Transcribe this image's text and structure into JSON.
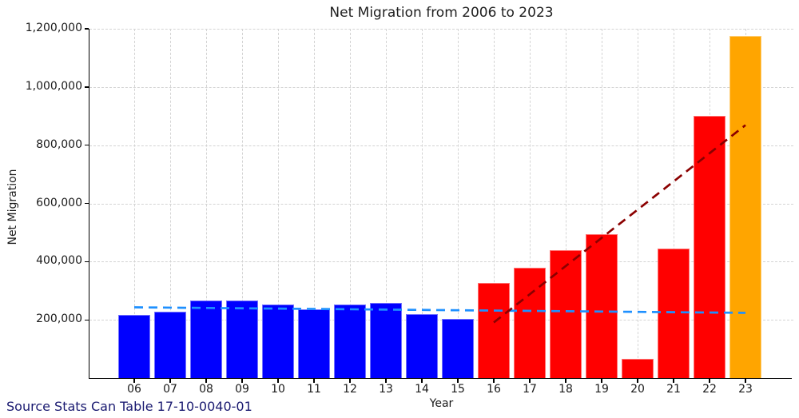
{
  "figure": {
    "title": "Net Migration from 2006 to 2023",
    "xlabel": "Year",
    "ylabel": "Net Migration",
    "source_note": "Source Stats Can Table 17-10-0040-01"
  },
  "colors": {
    "bar_blue": "#0000FF",
    "bar_red": "#FF0000",
    "bar_orange": "#FFA500",
    "trend_overall": "#1E90FF",
    "trend_recent": "#8B0000",
    "grid": "#D4D4D4",
    "axis": "#000000",
    "text": "#1A1A1A",
    "source_text": "#191970"
  },
  "chart_data": {
    "type": "bar",
    "title": "Net Migration from 2006 to 2023",
    "xlabel": "Year",
    "ylabel": "Net Migration",
    "categories": [
      "06",
      "07",
      "08",
      "09",
      "10",
      "11",
      "12",
      "13",
      "14",
      "15",
      "16",
      "17",
      "18",
      "19",
      "20",
      "21",
      "22",
      "23"
    ],
    "values": [
      216000,
      227000,
      267000,
      266000,
      252000,
      237000,
      254000,
      259000,
      220000,
      204000,
      327000,
      379000,
      439000,
      495000,
      66000,
      445000,
      902000,
      1176000
    ],
    "bar_colors": [
      "#0000FF",
      "#0000FF",
      "#0000FF",
      "#0000FF",
      "#0000FF",
      "#0000FF",
      "#0000FF",
      "#0000FF",
      "#0000FF",
      "#0000FF",
      "#FF0000",
      "#FF0000",
      "#FF0000",
      "#FF0000",
      "#FF0000",
      "#FF0000",
      "#FF0000",
      "#FFA500"
    ],
    "ylim": [
      0,
      1200000
    ],
    "yticks": [
      200000,
      400000,
      600000,
      800000,
      1000000,
      1200000
    ],
    "ytick_labels": [
      "200,000",
      "400,000",
      "600,000",
      "800,000",
      "1,000,000",
      "1,200,000"
    ],
    "grid": true,
    "legend": "none",
    "trendlines": [
      {
        "name": "overall-trend-line",
        "color": "#1E90FF",
        "from_category": "06",
        "to_category": "23",
        "from_value": 243000,
        "to_value": 224000,
        "style": "dashed"
      },
      {
        "name": "recent-trend-line",
        "color": "#8B0000",
        "from_category": "16",
        "to_category": "23",
        "from_value": 191000,
        "to_value": 869000,
        "style": "dashed"
      }
    ]
  }
}
